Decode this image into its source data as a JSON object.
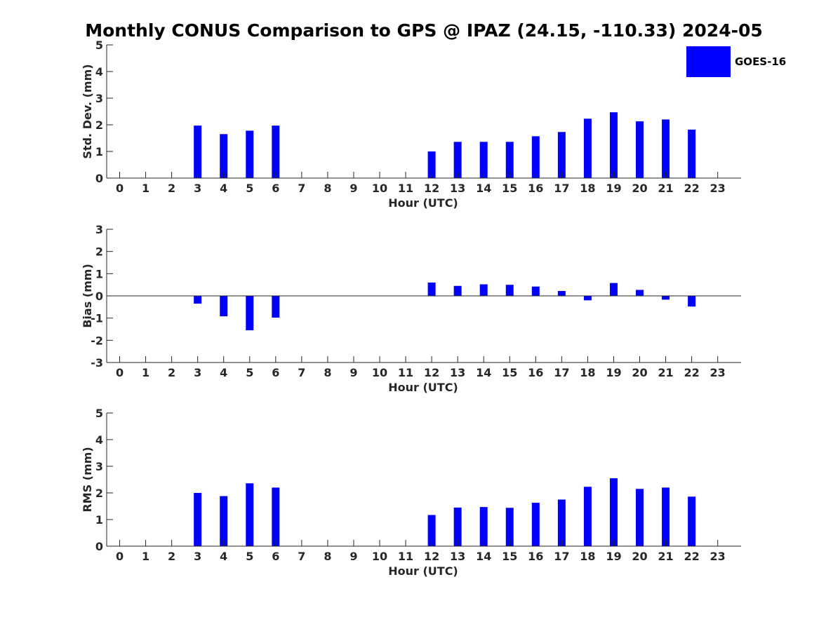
{
  "title": "Monthly CONUS Comparison to GPS @ IPAZ (24.15, -110.33) 2024-05",
  "legend": {
    "label": "GOES-16",
    "color": "#0000ff",
    "placement": "top-right"
  },
  "chart_data": [
    {
      "type": "bar",
      "name": "std-dev",
      "xlabel": "Hour (UTC)",
      "ylabel": "Std. Dev. (mm)",
      "xlim": [
        -0.5,
        23.9
      ],
      "ylim": [
        0,
        5
      ],
      "yticks": [
        "0",
        "1",
        "2",
        "3",
        "4",
        "5"
      ],
      "categories": [
        "0",
        "1",
        "2",
        "3",
        "4",
        "5",
        "6",
        "7",
        "8",
        "9",
        "10",
        "11",
        "12",
        "13",
        "14",
        "15",
        "16",
        "17",
        "18",
        "19",
        "20",
        "21",
        "22",
        "23"
      ],
      "series": [
        {
          "name": "GOES-16",
          "color": "#0000ff",
          "values": [
            0,
            0,
            0,
            1.97,
            1.65,
            1.78,
            1.97,
            0,
            0,
            0,
            0,
            0,
            1.0,
            1.36,
            1.36,
            1.36,
            1.57,
            1.73,
            2.23,
            2.47,
            2.13,
            2.2,
            1.82,
            0
          ]
        }
      ],
      "grid": false
    },
    {
      "type": "bar",
      "name": "bias",
      "xlabel": "Hour (UTC)",
      "ylabel": "Bias (mm)",
      "xlim": [
        -0.5,
        23.9
      ],
      "ylim": [
        -3,
        3
      ],
      "yticks": [
        "-3",
        "-2",
        "-1",
        "0",
        "1",
        "2",
        "3"
      ],
      "categories": [
        "0",
        "1",
        "2",
        "3",
        "4",
        "5",
        "6",
        "7",
        "8",
        "9",
        "10",
        "11",
        "12",
        "13",
        "14",
        "15",
        "16",
        "17",
        "18",
        "19",
        "20",
        "21",
        "22",
        "23"
      ],
      "series": [
        {
          "name": "GOES-16",
          "color": "#0000ff",
          "values": [
            0,
            0,
            0,
            -0.35,
            -0.92,
            -1.55,
            -0.98,
            0,
            0,
            0,
            0,
            0,
            0.6,
            0.45,
            0.52,
            0.5,
            0.42,
            0.22,
            -0.2,
            0.58,
            0.27,
            -0.17,
            -0.48,
            0
          ]
        }
      ],
      "grid": false
    },
    {
      "type": "bar",
      "name": "rms",
      "xlabel": "Hour (UTC)",
      "ylabel": "RMS (mm)",
      "xlim": [
        -0.5,
        23.9
      ],
      "ylim": [
        0,
        5
      ],
      "yticks": [
        "0",
        "1",
        "2",
        "3",
        "4",
        "5"
      ],
      "categories": [
        "0",
        "1",
        "2",
        "3",
        "4",
        "5",
        "6",
        "7",
        "8",
        "9",
        "10",
        "11",
        "12",
        "13",
        "14",
        "15",
        "16",
        "17",
        "18",
        "19",
        "20",
        "21",
        "22",
        "23"
      ],
      "series": [
        {
          "name": "GOES-16",
          "color": "#0000ff",
          "values": [
            0,
            0,
            0,
            2.0,
            1.88,
            2.36,
            2.2,
            0,
            0,
            0,
            0,
            0,
            1.17,
            1.45,
            1.47,
            1.44,
            1.63,
            1.75,
            2.23,
            2.55,
            2.15,
            2.2,
            1.86,
            0
          ]
        }
      ],
      "grid": false
    }
  ]
}
